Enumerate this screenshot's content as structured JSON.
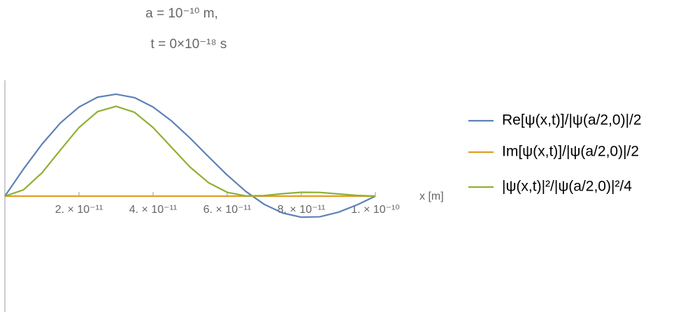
{
  "chart_data": {
    "type": "line",
    "title": "a = 10⁻¹⁰ m,",
    "subtitle": "t = 0×10⁻¹⁸ s",
    "xlabel": "x [m]",
    "x": [
      0,
      5e-12,
      1e-11,
      1.5e-11,
      2e-11,
      2.5e-11,
      3e-11,
      3.5e-11,
      4e-11,
      4.5e-11,
      5e-11,
      5.5e-11,
      6e-11,
      6.5e-11,
      7e-11,
      7.5e-11,
      8e-11,
      8.5e-11,
      9e-11,
      9.5e-11,
      1e-10
    ],
    "series": [
      {
        "name": "Re[ψ(x,t)]/|ψ(a/2,0)|/2",
        "color": "#5e81b5",
        "values": [
          0,
          0.233,
          0.448,
          0.632,
          0.769,
          0.854,
          0.88,
          0.85,
          0.769,
          0.648,
          0.5,
          0.339,
          0.182,
          0.041,
          -0.071,
          -0.146,
          -0.182,
          -0.178,
          -0.139,
          -0.076,
          0
        ]
      },
      {
        "name": "Im[ψ(x,t)]/|ψ(a/2,0)|/2",
        "color": "#e19c24",
        "values": [
          0,
          0,
          0,
          0,
          0,
          0,
          0,
          0,
          0,
          0,
          0,
          0,
          0,
          0,
          0,
          0,
          0,
          0,
          0,
          0,
          0
        ]
      },
      {
        "name": "|ψ(x,t)|²/|ψ(a/2,0)|²/4",
        "color": "#8fb032",
        "values": [
          0,
          0.054,
          0.201,
          0.399,
          0.592,
          0.729,
          0.775,
          0.723,
          0.592,
          0.42,
          0.25,
          0.115,
          0.033,
          0.002,
          0.005,
          0.021,
          0.033,
          0.032,
          0.019,
          0.006,
          0
        ]
      }
    ],
    "xlim": [
      0,
      1e-10
    ],
    "xticks": [
      {
        "value": 2e-11,
        "label": "2. × 10⁻¹¹"
      },
      {
        "value": 4e-11,
        "label": "4. × 10⁻¹¹"
      },
      {
        "value": 6e-11,
        "label": "6. × 10⁻¹¹"
      },
      {
        "value": 8e-11,
        "label": "8. × 10⁻¹¹"
      },
      {
        "value": 1e-10,
        "label": "1. × 10⁻¹⁰"
      }
    ],
    "ylim": [
      -1,
      1
    ],
    "yticks": [],
    "legend": "right"
  }
}
